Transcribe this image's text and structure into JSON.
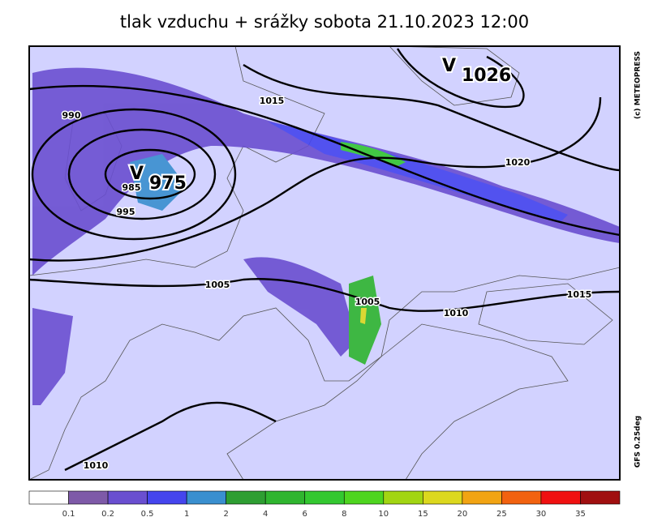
{
  "title": "tlak vzduchu + srážky  sobota 21.10.2023 12:00",
  "credit": "(c) METEOPRESS",
  "model": "GFS 0.25deg",
  "isobar_labels": [
    990,
    1015,
    985,
    995,
    1005,
    1020,
    1005,
    1010,
    1015,
    1010
  ],
  "pressure_centers": [
    {
      "symbol": "V",
      "value": 975
    },
    {
      "symbol": "V",
      "value": 1026
    }
  ],
  "legend": {
    "colors": [
      "#ffffff",
      "#7e5aa8",
      "#6a4fd0",
      "#4545ee",
      "#3a8fcf",
      "#2e9e32",
      "#2fb52f",
      "#33c830",
      "#4ed51f",
      "#a2d512",
      "#dcd81e",
      "#f2a413",
      "#f2620f",
      "#f01010",
      "#a00f10"
    ],
    "ticks": [
      0.1,
      0.2,
      0.5,
      1,
      2,
      4,
      6,
      8,
      10,
      15,
      20,
      25,
      30,
      35
    ]
  }
}
